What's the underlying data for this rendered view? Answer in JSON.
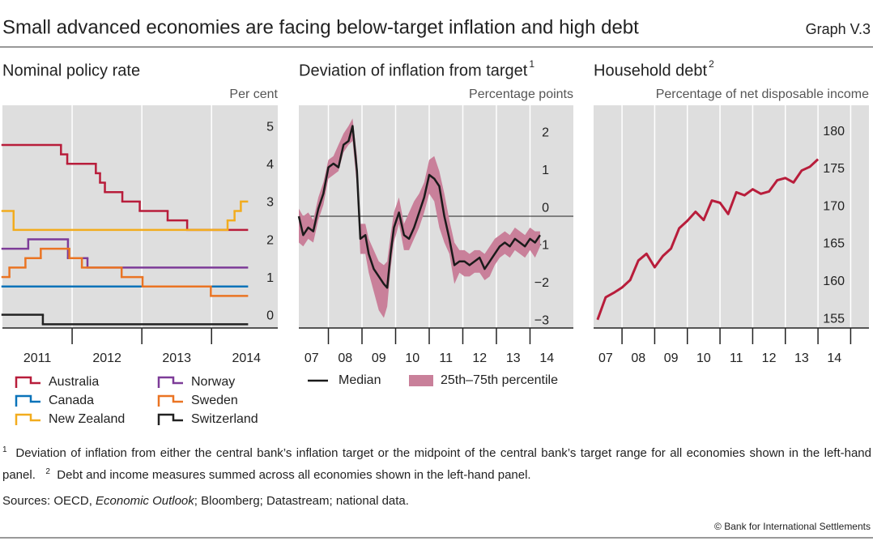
{
  "header": {
    "title": "Small advanced economies are facing below-target inflation and high debt",
    "graph_label": "Graph V.3"
  },
  "chart_data": [
    {
      "type": "step",
      "title": "Nominal policy rate",
      "y_label": "Per cent",
      "background": "#dedede",
      "xlim": [
        2011,
        2014.95
      ],
      "xticks": [
        {
          "value": 2011.5,
          "label": "2011"
        },
        {
          "value": 2012.5,
          "label": "2012"
        },
        {
          "value": 2013.5,
          "label": "2013"
        },
        {
          "value": 2014.5,
          "label": "2014"
        }
      ],
      "xgrid": [
        2012,
        2013,
        2014
      ],
      "ylim": [
        -0.1,
        5.8
      ],
      "yticks": [
        0,
        1,
        2,
        3,
        4,
        5
      ],
      "series": [
        {
          "name": "Australia",
          "color": "#b81d3b",
          "x": [
            2011,
            2011.84,
            2011.93,
            2012.34,
            2012.4,
            2012.47,
            2012.72,
            2012.97,
            2013.37,
            2013.65,
            2014.51
          ],
          "values": [
            4.75,
            4.5,
            4.25,
            4.0,
            3.75,
            3.5,
            3.25,
            3.0,
            2.75,
            2.5,
            2.5
          ]
        },
        {
          "name": "Canada",
          "color": "#0a73b9",
          "x": [
            2011,
            2014.51
          ],
          "values": [
            1,
            1
          ]
        },
        {
          "name": "New Zealand",
          "color": "#f2ac1e",
          "x": [
            2011,
            2011.16,
            2014.23,
            2014.33,
            2014.42,
            2014.51
          ],
          "values": [
            3,
            2.5,
            2.75,
            3,
            3.25,
            3.25
          ]
        },
        {
          "name": "Norway",
          "color": "#7d3c98",
          "x": [
            2011,
            2011.37,
            2011.94,
            2012.22,
            2014.51
          ],
          "values": [
            2,
            2.25,
            1.75,
            1.5,
            1.5
          ]
        },
        {
          "name": "Sweden",
          "color": "#ea7423",
          "x": [
            2011,
            2011.1,
            2011.33,
            2011.55,
            2011.96,
            2012.14,
            2012.71,
            2013.01,
            2013.99,
            2014.51
          ],
          "values": [
            1.25,
            1.5,
            1.75,
            2.0,
            1.75,
            1.5,
            1.25,
            1.0,
            0.75,
            0.75
          ]
        },
        {
          "name": "Switzerland",
          "color": "#222222",
          "x": [
            2011,
            2011.58,
            2014.51
          ],
          "values": [
            0.25,
            0,
            0
          ]
        }
      ]
    },
    {
      "type": "line",
      "title": "Deviation of inflation from target",
      "title_note": "1",
      "y_label": "Percentage points",
      "background": "#dedede",
      "zero_line": true,
      "xlim": [
        2007.12,
        2015.29
      ],
      "xticks": [
        {
          "value": 2007.5,
          "label": "07"
        },
        {
          "value": 2008.5,
          "label": "08"
        },
        {
          "value": 2009.5,
          "label": "09"
        },
        {
          "value": 2010.5,
          "label": "10"
        },
        {
          "value": 2011.5,
          "label": "11"
        },
        {
          "value": 2012.5,
          "label": "12"
        },
        {
          "value": 2013.5,
          "label": "13"
        },
        {
          "value": 2014.5,
          "label": "14"
        }
      ],
      "xgrid": [
        2008,
        2009,
        2010,
        2011,
        2012,
        2013,
        2014
      ],
      "ylim": [
        -2.97,
        2.95
      ],
      "yticks": [
        {
          "value": -3,
          "label": "−3"
        },
        {
          "value": -2,
          "label": "−2"
        },
        {
          "value": -1,
          "label": "−1"
        },
        0,
        1,
        2
      ],
      "x": [
        2007.12,
        2007.25,
        2007.4,
        2007.55,
        2007.7,
        2007.85,
        2008.0,
        2008.15,
        2008.3,
        2008.45,
        2008.6,
        2008.72,
        2008.85,
        2008.95,
        2009.1,
        2009.2,
        2009.35,
        2009.5,
        2009.65,
        2009.75,
        2009.85,
        2009.95,
        2010.1,
        2010.25,
        2010.4,
        2010.55,
        2010.7,
        2010.85,
        2011.0,
        2011.15,
        2011.3,
        2011.45,
        2011.6,
        2011.75,
        2011.9,
        2012.05,
        2012.2,
        2012.35,
        2012.5,
        2012.65,
        2012.8,
        2012.95,
        2013.1,
        2013.25,
        2013.4,
        2013.55,
        2013.7,
        2013.85,
        2014.0,
        2014.15,
        2014.3
      ],
      "band": {
        "name": "25th–75th percentile",
        "color": "#c9809a",
        "low": [
          -0.7,
          -0.8,
          -0.6,
          -0.7,
          -0.1,
          0.3,
          1.0,
          1.1,
          1.2,
          1.7,
          1.9,
          2.0,
          0.8,
          -1.0,
          -1.0,
          -1.5,
          -2.0,
          -2.5,
          -2.7,
          -2.4,
          -1.4,
          -0.7,
          -0.2,
          -0.9,
          -0.9,
          -0.6,
          -0.3,
          0.1,
          0.6,
          0.4,
          -0.3,
          -0.7,
          -1.0,
          -1.8,
          -1.5,
          -1.6,
          -1.6,
          -1.5,
          -1.5,
          -1.7,
          -1.6,
          -1.3,
          -1.1,
          -1.0,
          -1.1,
          -0.9,
          -1.0,
          -1.1,
          -0.9,
          -1.1,
          -0.8
        ],
        "high": [
          0.2,
          0.0,
          0.1,
          -0.1,
          0.5,
          0.9,
          1.5,
          1.6,
          1.9,
          2.2,
          2.4,
          2.6,
          1.6,
          -0.2,
          -0.2,
          -0.6,
          -0.9,
          -1.2,
          -1.3,
          -1.2,
          -0.5,
          0.1,
          0.5,
          -0.2,
          0.1,
          0.4,
          0.6,
          0.9,
          1.5,
          1.6,
          1.2,
          0.6,
          -0.1,
          -0.7,
          -0.9,
          -0.9,
          -1.0,
          -0.9,
          -0.9,
          -1.0,
          -0.8,
          -0.6,
          -0.5,
          -0.4,
          -0.5,
          -0.3,
          -0.4,
          -0.5,
          -0.3,
          -0.4,
          -0.4
        ]
      },
      "series": [
        {
          "name": "Median",
          "color": "#1a1a1a",
          "values": [
            0.0,
            -0.5,
            -0.3,
            -0.4,
            0.2,
            0.6,
            1.3,
            1.4,
            1.3,
            1.9,
            2.0,
            2.4,
            1.2,
            -0.6,
            -0.5,
            -1.0,
            -1.4,
            -1.6,
            -1.8,
            -1.9,
            -1.0,
            -0.3,
            0.1,
            -0.5,
            -0.6,
            -0.3,
            0.1,
            0.5,
            1.1,
            1.0,
            0.8,
            0.0,
            -0.6,
            -1.3,
            -1.2,
            -1.2,
            -1.3,
            -1.2,
            -1.1,
            -1.4,
            -1.2,
            -1.0,
            -0.8,
            -0.7,
            -0.8,
            -0.6,
            -0.7,
            -0.8,
            -0.6,
            -0.7,
            -0.5
          ]
        }
      ]
    },
    {
      "type": "line",
      "title": "Household debt",
      "title_note": "2",
      "y_label": "Percentage of net disposable income",
      "background": "#dedede",
      "xlim": [
        2007.13,
        2015.56
      ],
      "xticks": [
        {
          "value": 2007.5,
          "label": "07"
        },
        {
          "value": 2008.5,
          "label": "08"
        },
        {
          "value": 2009.5,
          "label": "09"
        },
        {
          "value": 2010.5,
          "label": "10"
        },
        {
          "value": 2011.5,
          "label": "11"
        },
        {
          "value": 2012.5,
          "label": "12"
        },
        {
          "value": 2013.5,
          "label": "13"
        },
        {
          "value": 2014.5,
          "label": "14"
        }
      ],
      "xgrid": [
        2008,
        2009,
        2010,
        2011,
        2012,
        2013,
        2014,
        2015
      ],
      "ylim": [
        154.9,
        184.6
      ],
      "yticks": [
        155,
        160,
        165,
        170,
        175,
        180
      ],
      "x": [
        2007.25,
        2007.5,
        2007.75,
        2008,
        2008.25,
        2008.5,
        2008.75,
        2009,
        2009.25,
        2009.5,
        2009.75,
        2010,
        2010.25,
        2010.5,
        2010.75,
        2011,
        2011.25,
        2011.5,
        2011.75,
        2012,
        2012.25,
        2012.5,
        2012.75,
        2013,
        2013.25,
        2013.5,
        2013.75,
        2014
      ],
      "series": [
        {
          "color": "#b81d3b",
          "values": [
            156.0,
            159.0,
            159.6,
            160.3,
            161.3,
            163.9,
            164.8,
            163.0,
            164.5,
            165.5,
            168.2,
            169.2,
            170.4,
            169.3,
            171.9,
            171.6,
            170.1,
            173.0,
            172.6,
            173.4,
            172.8,
            173.1,
            174.6,
            174.9,
            174.3,
            175.9,
            176.4,
            177.4
          ]
        }
      ]
    }
  ],
  "footnotes": [
    {
      "marker": "1",
      "text": "Deviation of inflation from either the central bank’s inflation target or the midpoint of the central bank’s target range for all economies shown in the left-hand panel."
    },
    {
      "marker": "2",
      "text": "Debt and income measures summed across all economies shown in the left-hand panel."
    }
  ],
  "sources": {
    "prefix": "Sources: OECD, ",
    "italic": "Economic Outlook",
    "suffix": "; Bloomberg; Datastream; national data."
  },
  "copyright": "© Bank for International Settlements"
}
